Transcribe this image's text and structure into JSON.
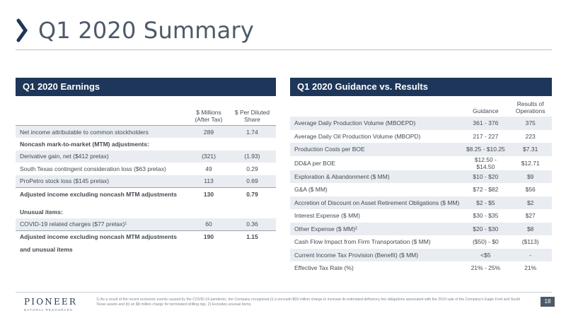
{
  "title": "Q1 2020 Summary",
  "colors": {
    "accent": "#1d3659",
    "title": "#4d5a69",
    "shade": "#e9edf1"
  },
  "earnings": {
    "header": "Q1 2020 Earnings",
    "col1": "$ Millions (After Tax)",
    "col2": "$ Per Diluted Share",
    "rows": [
      {
        "label": "Net income attributable to common stockholders",
        "m": "289",
        "s": "1.74"
      },
      {
        "label": "Noncash mark-to-market (MTM) adjustments:",
        "m": "",
        "s": ""
      },
      {
        "label": "Derivative gain, net ($412 pretax)",
        "m": "(321)",
        "s": "(1.93)"
      },
      {
        "label": "South Texas contingent consideration loss ($63 pretax)",
        "m": "49",
        "s": "0.29"
      },
      {
        "label": "ProPetro stock loss ($145 pretax)",
        "m": "113",
        "s": "0.69"
      },
      {
        "label": "Adjusted income excluding noncash MTM adjustments",
        "m": "130",
        "s": "0.79"
      },
      {
        "label": "Unusual items:",
        "m": "",
        "s": ""
      },
      {
        "label": "COVID-19 related charges ($77 pretax)¹",
        "m": "60",
        "s": "0.36"
      },
      {
        "label": "Adjusted income excluding noncash MTM adjustments",
        "m": "190",
        "s": "1.15"
      },
      {
        "label": "and unusual items",
        "m": "",
        "s": ""
      }
    ]
  },
  "guidance": {
    "header": "Q1 2020 Guidance vs. Results",
    "col1": "Guidance",
    "col2": "Results of Operations",
    "rows": [
      {
        "label": "Average Daily Production Volume (MBOEPD)",
        "g": "361 - 376",
        "r": "375"
      },
      {
        "label": "Average Daily Oil Production Volume (MBOPD)",
        "g": "217 - 227",
        "r": "223"
      },
      {
        "label": "Production Costs per BOE",
        "g": "$8.25 - $10.25",
        "r": "$7.31"
      },
      {
        "label": "DD&A per BOE",
        "g": "$12.50 - $14.50",
        "r": "$12.71"
      },
      {
        "label": "Exploration & Abandonment ($ MM)",
        "g": "$10 - $20",
        "r": "$9"
      },
      {
        "label": "G&A ($ MM)",
        "g": "$72 - $82",
        "r": "$56"
      },
      {
        "label": "Accretion of Discount on Asset Retirement Obligations ($ MM)",
        "g": "$2 - $5",
        "r": "$2"
      },
      {
        "label": "Interest Expense ($ MM)",
        "g": "$30 - $35",
        "r": "$27"
      },
      {
        "label": "Other Expense ($ MM)²",
        "g": "$20 - $30",
        "r": "$8"
      },
      {
        "label": "Cash Flow Impact from Firm Transportation ($ MM)",
        "g": "($50) - $0",
        "r": "($113)"
      },
      {
        "label": "Current Income Tax Provision (Benefit) ($ MM)",
        "g": "<$5",
        "r": "-"
      },
      {
        "label": "Effective Tax Rate (%)",
        "g": "21% - 25%",
        "r": "21%"
      }
    ]
  },
  "footer": {
    "logo_name": "PIONEER",
    "logo_sub": "NATURAL RESOURCES",
    "footnote": "1) As a result of the recent economic events caused by the COVID-19 pandemic, the Company recognized (i) a noncash $69 million charge to increase its estimated deficiency fee obligations associated with the 2019 sale of the Company's Eagle Ford and South Texas assets and (ii) an $8 million charge for terminated drilling rigs.   2) Excludes unusual items.",
    "page": "18"
  }
}
